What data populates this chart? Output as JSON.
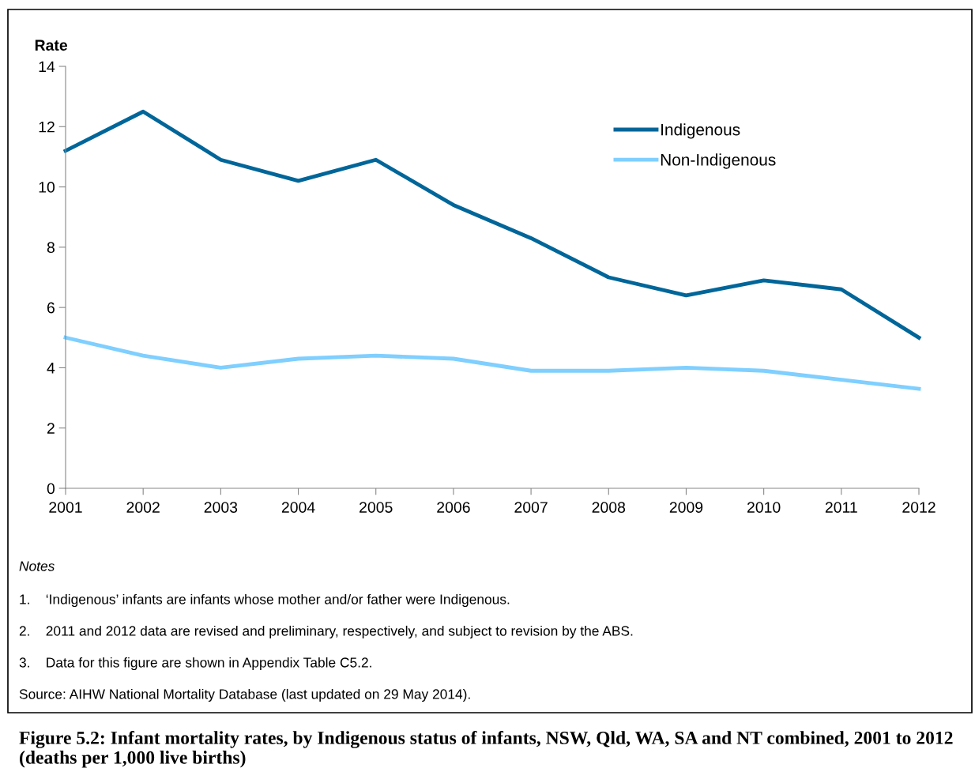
{
  "chart_data": {
    "type": "line",
    "title": "Figure 5.2: Infant mortality rates, by Indigenous status of infants, NSW, Qld, WA, SA and NT combined, 2001 to 2012 (deaths per 1,000 live births)",
    "ylabel": "Rate",
    "x": [
      2001,
      2002,
      2003,
      2004,
      2005,
      2006,
      2007,
      2008,
      2009,
      2010,
      2011,
      2012
    ],
    "series": [
      {
        "name": "Indigenous",
        "color": "#006699",
        "values": [
          11.2,
          12.5,
          10.9,
          10.2,
          10.9,
          9.4,
          8.3,
          7.0,
          6.4,
          6.9,
          6.6,
          5.0
        ]
      },
      {
        "name": "Non-Indigenous",
        "color": "#7fcfff",
        "values": [
          5.0,
          4.4,
          4.0,
          4.3,
          4.4,
          4.3,
          3.9,
          3.9,
          4.0,
          3.9,
          3.6,
          3.3
        ]
      }
    ],
    "xlim": [
      2001,
      2012
    ],
    "xticks": [
      2001,
      2002,
      2003,
      2004,
      2005,
      2006,
      2007,
      2008,
      2009,
      2010,
      2011,
      2012
    ],
    "ylim": [
      0,
      14
    ],
    "yticks": [
      0,
      2,
      4,
      6,
      8,
      10,
      12,
      14
    ],
    "grid": false,
    "legend": "top right",
    "marker": "none",
    "line_style": "solid",
    "annotations": [
      "Notes",
      "1.    ‘Indigenous’ infants are infants whose mother and/or father were Indigenous.",
      "2.    2011 and 2012 data are revised and preliminary, respectively, and subject to revision by the ABS.",
      "3.    Data for this figure are shown in Appendix Table C5.2.",
      "Source: AIHW National Mortality Database (last updated on 29 May 2014)."
    ]
  }
}
